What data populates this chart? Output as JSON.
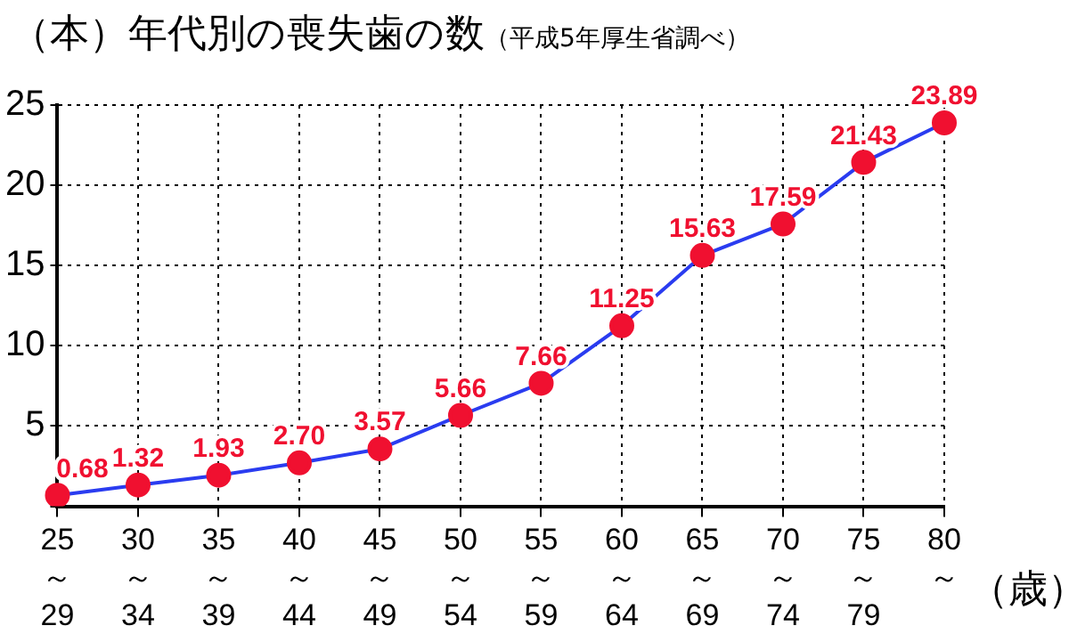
{
  "chart_data": {
    "type": "line",
    "title": "年代別の喪失歯の数",
    "subtitle": "（平成5年厚生省調べ）",
    "ylabel": "（本）",
    "xlabel": "（歳）",
    "categories": [
      "25\n～\n29",
      "30\n～\n34",
      "35\n～\n39",
      "40\n～\n44",
      "45\n～\n49",
      "50\n～\n54",
      "55\n～\n59",
      "60\n～\n64",
      "65\n～\n69",
      "70\n～\n74",
      "75\n～\n79",
      "80\n～"
    ],
    "series": [
      {
        "color": "#2a3cf0",
        "colors": [
          "#f01030",
          "#f01030",
          "#f01030",
          "#f01030",
          "#f01030",
          "#f01030",
          "#f01030",
          "#f01030",
          "#f01030",
          "#f01030",
          "#f01030",
          "#f01030"
        ],
        "values": [
          0.68,
          1.32,
          1.93,
          2.7,
          3.57,
          5.66,
          7.66,
          11.25,
          15.63,
          17.59,
          21.43,
          23.89
        ]
      }
    ],
    "value_labels": [
      "0.68",
      "1.32",
      "1.93",
      "2.70",
      "3.57",
      "5.66",
      "7.66",
      "11.25",
      "15.63",
      "17.59",
      "21.43",
      "23.89"
    ],
    "ylim": [
      0,
      25
    ],
    "yticks": [
      {
        "value": 0,
        "label": null
      },
      5,
      10,
      15,
      20,
      25
    ],
    "grid": true,
    "marker": "circle",
    "line_style": "solid",
    "legend": false
  }
}
